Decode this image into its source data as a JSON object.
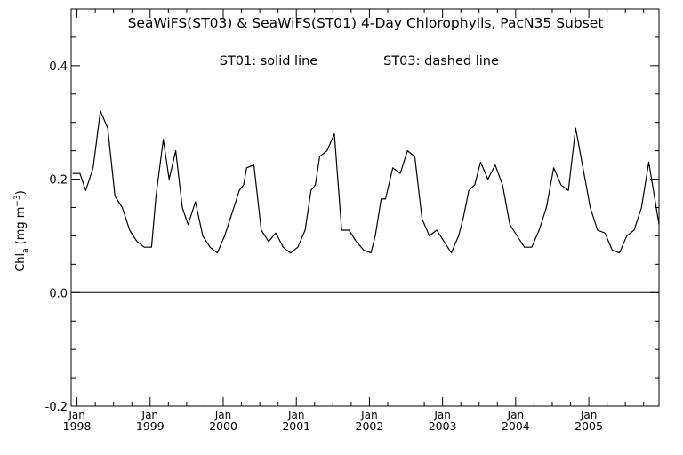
{
  "chart_data": {
    "type": "line",
    "title": "SeaWiFS(ST03) & SeaWiFS(ST01) 4-Day Chlorophylls, PacN35 Subset",
    "annotation_left": "ST01: solid line",
    "annotation_right": "ST03: dashed line",
    "ylabel_main": "Chl",
    "ylabel_sub": "a",
    "ylabel_unit_pre": "(mg m",
    "ylabel_unit_sup": "−3",
    "ylabel_unit_post": ")",
    "ylim": [
      -0.2,
      0.5
    ],
    "y_ticks": [
      -0.2,
      0.0,
      0.2,
      0.4
    ],
    "y_tick_labels": [
      "-0.2",
      "0.0",
      "0.2",
      "0.4"
    ],
    "xlim": [
      1997.92,
      2005.96
    ],
    "x_tick_labels": [
      {
        "month": "Jan",
        "year": "1998",
        "x": 1998.0
      },
      {
        "month": "Jan",
        "year": "1999",
        "x": 1999.0
      },
      {
        "month": "Jan",
        "year": "2000",
        "x": 2000.0
      },
      {
        "month": "Jan",
        "year": "2001",
        "x": 2001.0
      },
      {
        "month": "Jan",
        "year": "2002",
        "x": 2002.0
      },
      {
        "month": "Jan",
        "year": "2003",
        "x": 2003.0
      },
      {
        "month": "Jan",
        "year": "2004",
        "x": 2004.0
      },
      {
        "month": "Jan",
        "year": "2005",
        "x": 2005.0
      }
    ],
    "zero_line": 0.0,
    "grid": false,
    "series": [
      {
        "name": "ST01",
        "style": "solid",
        "color": "#000000",
        "x": [
          1997.94,
          1998.04,
          1998.12,
          1998.22,
          1998.32,
          1998.42,
          1998.52,
          1998.62,
          1998.72,
          1998.82,
          1998.92,
          1999.02,
          1999.08,
          1999.18,
          1999.26,
          1999.35,
          1999.44,
          1999.52,
          1999.62,
          1999.72,
          1999.82,
          1999.92,
          2000.02,
          2000.12,
          2000.22,
          2000.28,
          2000.32,
          2000.42,
          2000.52,
          2000.62,
          2000.72,
          2000.82,
          2000.92,
          2001.02,
          2001.12,
          2001.2,
          2001.26,
          2001.32,
          2001.42,
          2001.52,
          2001.62,
          2001.72,
          2001.82,
          2001.92,
          2002.02,
          2002.08,
          2002.16,
          2002.22,
          2002.32,
          2002.42,
          2002.52,
          2002.62,
          2002.72,
          2002.82,
          2002.92,
          2003.02,
          2003.12,
          2003.22,
          2003.28,
          2003.36,
          2003.44,
          2003.52,
          2003.62,
          2003.72,
          2003.82,
          2003.92,
          2004.02,
          2004.12,
          2004.22,
          2004.32,
          2004.42,
          2004.52,
          2004.62,
          2004.72,
          2004.82,
          2004.92,
          2005.02,
          2005.12,
          2005.22,
          2005.32,
          2005.42,
          2005.52,
          2005.62,
          2005.72,
          2005.82,
          2005.96
        ],
        "values": [
          0.21,
          0.21,
          0.18,
          0.22,
          0.32,
          0.29,
          0.17,
          0.15,
          0.11,
          0.09,
          0.08,
          0.08,
          0.17,
          0.27,
          0.2,
          0.25,
          0.15,
          0.12,
          0.16,
          0.1,
          0.08,
          0.07,
          0.1,
          0.14,
          0.18,
          0.19,
          0.22,
          0.225,
          0.11,
          0.09,
          0.105,
          0.08,
          0.07,
          0.08,
          0.11,
          0.18,
          0.19,
          0.24,
          0.25,
          0.28,
          0.11,
          0.11,
          0.09,
          0.075,
          0.07,
          0.1,
          0.165,
          0.165,
          0.22,
          0.21,
          0.25,
          0.24,
          0.13,
          0.1,
          0.11,
          0.09,
          0.07,
          0.1,
          0.13,
          0.18,
          0.19,
          0.23,
          0.2,
          0.225,
          0.19,
          0.12,
          0.1,
          0.08,
          0.08,
          0.11,
          0.15,
          0.22,
          0.19,
          0.18,
          0.29,
          0.22,
          0.15,
          0.11,
          0.105,
          0.075,
          0.07,
          0.1,
          0.11,
          0.15,
          0.23,
          0.12
        ]
      }
    ]
  }
}
